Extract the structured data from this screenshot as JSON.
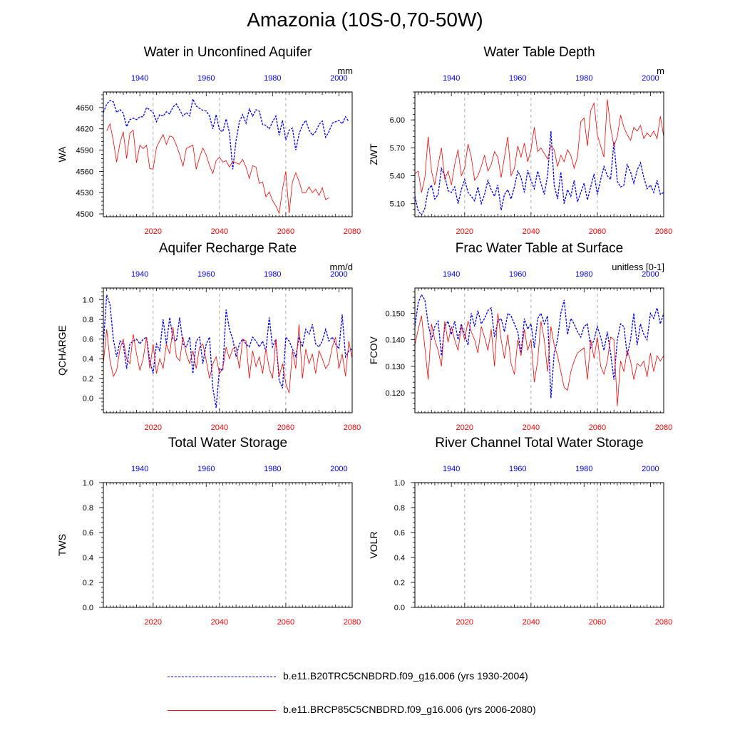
{
  "figure_title": "Amazonia (10S-0,70-50W)",
  "colors": {
    "historical": "#0000ff",
    "future": "#ff0000",
    "grid": "#999999"
  },
  "legend": [
    {
      "label": "b.e11.B20TRC5CNBDRD.f09_g16.006 (yrs 1930-2004)",
      "color": "#0000ff",
      "style": "dashed"
    },
    {
      "label": "b.e11.BRCP85C5CNBDRD.f09_g16.006 (yrs 2006-2080)",
      "color": "#ff0000",
      "style": "solid"
    }
  ],
  "chart_data": [
    {
      "type": "line",
      "title": "Water in Unconfined Aquifer",
      "ylabel": "WA",
      "units": "mm",
      "ylim": [
        4496,
        4672
      ],
      "yticks": [
        4500,
        4530,
        4560,
        4590,
        4620,
        4650
      ],
      "ytick_labels": [
        "4500",
        "4530",
        "4560",
        "4590",
        "4620",
        "4650"
      ],
      "x_bottom": {
        "range": [
          2005,
          2080
        ],
        "ticks": [
          2020,
          2040,
          2060,
          2080
        ]
      },
      "x_top": {
        "range": [
          1929,
          2004
        ],
        "ticks": [
          1940,
          1960,
          1980,
          2000
        ]
      },
      "series": [
        {
          "name": "b.e11.B20TRC5CNBDRD.f09_g16.006",
          "axis": "top",
          "color": "#0000ff",
          "dash": "dashed",
          "x_start": 1929,
          "values": [
            4643,
            4655,
            4660,
            4658,
            4643,
            4647,
            4642,
            4623,
            4633,
            4635,
            4633,
            4637,
            4637,
            4650,
            4647,
            4643,
            4630,
            4640,
            4638,
            4644,
            4641,
            4651,
            4655,
            4647,
            4638,
            4643,
            4638,
            4662,
            4652,
            4649,
            4646,
            4645,
            4638,
            4620,
            4640,
            4618,
            4616,
            4634,
            4615,
            4563,
            4603,
            4630,
            4640,
            4628,
            4648,
            4638,
            4647,
            4645,
            4626,
            4625,
            4620,
            4630,
            4638,
            4611,
            4632,
            4604,
            4618,
            4621,
            4590,
            4613,
            4625,
            4632,
            4618,
            4611,
            4616,
            4626,
            4631,
            4608,
            4616,
            4628,
            4630,
            4632,
            4627,
            4637,
            4630
          ]
        },
        {
          "name": "b.e11.BRCP85C5CNBDRD.f09_g16.006",
          "axis": "bottom",
          "color": "#ff0000",
          "dash": "solid",
          "x_start": 2006,
          "values": [
            4617,
            4627,
            4603,
            4573,
            4600,
            4616,
            4578,
            4614,
            4618,
            4572,
            4597,
            4592,
            4597,
            4564,
            4563,
            4594,
            4603,
            4612,
            4598,
            4610,
            4608,
            4597,
            4584,
            4567,
            4592,
            4595,
            4597,
            4563,
            4580,
            4593,
            4583,
            4568,
            4557,
            4575,
            4580,
            4573,
            4575,
            4566,
            4574,
            4572,
            4570,
            4577,
            4566,
            4550,
            4568,
            4566,
            4543,
            4545,
            4524,
            4531,
            4519,
            4511,
            4501,
            4535,
            4560,
            4501,
            4545,
            4558,
            4546,
            4530,
            4530,
            4538,
            4530,
            4535,
            4526,
            4537,
            4520,
            4523
          ]
        }
      ]
    },
    {
      "type": "line",
      "title": "Water Table Depth",
      "ylabel": "ZWT",
      "units": "m",
      "ylim": [
        4.96,
        6.3
      ],
      "yticks": [
        5.1,
        5.4,
        5.7,
        6.0
      ],
      "ytick_labels": [
        "5.10",
        "5.40",
        "5.70",
        "6.00"
      ],
      "x_bottom": {
        "range": [
          2005,
          2080
        ],
        "ticks": [
          2020,
          2040,
          2060,
          2080
        ]
      },
      "x_top": {
        "range": [
          1929,
          2004
        ],
        "ticks": [
          1940,
          1960,
          1980,
          2000
        ]
      },
      "series": [
        {
          "name": "b.e11.B20TRC5CNBDRD.f09_g16.006",
          "axis": "top",
          "color": "#0000ff",
          "dash": "dashed",
          "x_start": 1929,
          "values": [
            5.18,
            5.02,
            4.98,
            5.05,
            5.25,
            5.3,
            5.15,
            5.2,
            5.48,
            5.4,
            5.24,
            5.22,
            5.28,
            5.1,
            5.25,
            5.36,
            5.22,
            5.18,
            5.13,
            5.28,
            5.1,
            5.2,
            5.35,
            5.25,
            5.18,
            5.3,
            5.03,
            5.2,
            5.25,
            5.15,
            5.28,
            5.45,
            5.38,
            5.22,
            5.46,
            5.35,
            5.26,
            5.45,
            5.32,
            5.2,
            5.4,
            5.88,
            5.3,
            5.15,
            5.44,
            5.1,
            5.25,
            5.18,
            5.35,
            5.12,
            5.22,
            5.32,
            5.14,
            5.28,
            5.42,
            5.2,
            5.36,
            5.5,
            5.4,
            5.36,
            5.76,
            5.34,
            5.28,
            5.3,
            5.52,
            5.44,
            5.32,
            5.46,
            5.54,
            5.38,
            5.26,
            5.3,
            5.22,
            5.35,
            5.2,
            5.22,
            5.15,
            5.32,
            5.1,
            5.3
          ]
        },
        {
          "name": "b.e11.BRCP85C5CNBDRD.f09_g16.006",
          "axis": "bottom",
          "color": "#ff0000",
          "dash": "solid",
          "x_start": 2005,
          "values": [
            5.42,
            5.45,
            5.22,
            5.38,
            5.82,
            5.45,
            5.3,
            5.52,
            5.7,
            5.36,
            5.45,
            5.3,
            5.52,
            5.68,
            5.4,
            5.48,
            5.74,
            5.6,
            5.35,
            5.4,
            5.5,
            5.62,
            5.45,
            5.52,
            5.66,
            5.6,
            5.38,
            5.6,
            5.82,
            5.4,
            5.48,
            5.72,
            5.6,
            5.75,
            5.55,
            5.68,
            5.92,
            5.66,
            5.7,
            5.64,
            5.58,
            5.72,
            5.68,
            5.5,
            5.62,
            5.55,
            5.68,
            5.62,
            5.48,
            5.6,
            5.98,
            6.02,
            5.72,
            6.1,
            6.18,
            5.84,
            5.72,
            5.6,
            6.22,
            5.92,
            5.72,
            5.82,
            6.05,
            5.92,
            5.84,
            5.78,
            5.92,
            5.88,
            5.94,
            5.8,
            5.86,
            5.82,
            5.88,
            5.8,
            6.04,
            5.82
          ]
        }
      ]
    },
    {
      "type": "line",
      "title": "Aquifer Recharge Rate",
      "ylabel": "QCHARGE",
      "units": "mm/d",
      "ylim": [
        -0.15,
        1.12
      ],
      "yticks": [
        0.0,
        0.2,
        0.4,
        0.6,
        0.8,
        1.0
      ],
      "ytick_labels": [
        "0.0",
        "0.2",
        "0.4",
        "0.6",
        "0.8",
        "1.0"
      ],
      "x_bottom": {
        "range": [
          2005,
          2080
        ],
        "ticks": [
          2020,
          2040,
          2060,
          2080
        ]
      },
      "x_top": {
        "range": [
          1929,
          2004
        ],
        "ticks": [
          1940,
          1960,
          1980,
          2000
        ]
      },
      "series": [
        {
          "name": "b.e11.B20TRC5CNBDRD.f09_g16.006",
          "axis": "top",
          "color": "#0000ff",
          "dash": "dashed",
          "x_start": 1929,
          "values": [
            0.55,
            1.05,
            0.95,
            0.6,
            0.42,
            0.58,
            0.55,
            0.3,
            0.55,
            0.58,
            0.6,
            0.55,
            0.6,
            0.62,
            0.38,
            0.25,
            0.55,
            0.48,
            0.8,
            0.55,
            0.82,
            0.6,
            0.58,
            0.82,
            0.55,
            0.52,
            0.62,
            0.25,
            0.58,
            0.62,
            0.35,
            0.55,
            0.62,
            0.1,
            -0.1,
            0.3,
            0.28,
            0.9,
            0.7,
            0.6,
            0.42,
            0.55,
            0.6,
            0.55,
            0.52,
            0.62,
            0.58,
            0.52,
            0.58,
            0.48,
            0.82,
            0.52,
            0.6,
            0.18,
            0.1,
            0.62,
            0.58,
            0.5,
            0.42,
            0.62,
            0.52,
            0.7,
            0.65,
            0.75,
            0.55,
            0.52,
            0.58,
            0.7,
            0.58,
            0.62,
            0.55,
            0.5,
            0.85,
            0.42,
            0.48,
            0.5
          ]
        },
        {
          "name": "b.e11.BRCP85C5CNBDRD.f09_g16.006",
          "axis": "bottom",
          "color": "#ff0000",
          "dash": "solid",
          "x_start": 2005,
          "values": [
            0.35,
            0.7,
            0.38,
            0.22,
            0.28,
            0.5,
            0.6,
            0.4,
            0.35,
            0.65,
            0.45,
            0.28,
            0.4,
            0.62,
            0.3,
            0.55,
            0.25,
            0.4,
            0.3,
            0.55,
            0.45,
            0.72,
            0.42,
            0.38,
            0.62,
            0.45,
            0.35,
            0.48,
            0.3,
            0.52,
            0.55,
            0.38,
            0.2,
            0.35,
            0.42,
            0.25,
            0.3,
            0.52,
            0.4,
            0.5,
            0.52,
            0.3,
            0.6,
            0.58,
            0.2,
            0.48,
            0.32,
            0.42,
            0.25,
            0.5,
            0.3,
            0.2,
            0.6,
            0.22,
            0.35,
            0.15,
            0.05,
            0.48,
            0.3,
            0.75,
            0.2,
            0.5,
            0.35,
            0.45,
            0.25,
            0.48,
            0.4,
            0.3,
            0.35,
            0.52,
            0.62,
            0.3,
            0.45,
            0.22,
            0.58,
            0.4
          ]
        }
      ]
    },
    {
      "type": "line",
      "title": "Frac Water Table at Surface",
      "ylabel": "FCOV",
      "units": "unitless [0-1]",
      "ylim": [
        0.1125,
        0.1595
      ],
      "yticks": [
        0.12,
        0.13,
        0.14,
        0.15
      ],
      "ytick_labels": [
        "0.120",
        "0.130",
        "0.140",
        "0.150"
      ],
      "x_bottom": {
        "range": [
          2005,
          2080
        ],
        "ticks": [
          2020,
          2040,
          2060,
          2080
        ]
      },
      "x_top": {
        "range": [
          1929,
          2004
        ],
        "ticks": [
          1940,
          1960,
          1980,
          2000
        ]
      },
      "series": [
        {
          "name": "b.e11.B20TRC5CNBDRD.f09_g16.006",
          "axis": "top",
          "color": "#0000ff",
          "dash": "dashed",
          "x_start": 1929,
          "values": [
            0.145,
            0.154,
            0.157,
            0.155,
            0.146,
            0.14,
            0.145,
            0.147,
            0.134,
            0.145,
            0.147,
            0.142,
            0.147,
            0.14,
            0.146,
            0.142,
            0.138,
            0.15,
            0.145,
            0.151,
            0.146,
            0.148,
            0.151,
            0.152,
            0.141,
            0.147,
            0.148,
            0.143,
            0.15,
            0.149,
            0.146,
            0.143,
            0.135,
            0.148,
            0.144,
            0.146,
            0.137,
            0.148,
            0.15,
            0.146,
            0.149,
            0.118,
            0.135,
            0.14,
            0.15,
            0.155,
            0.142,
            0.148,
            0.146,
            0.143,
            0.141,
            0.145,
            0.146,
            0.137,
            0.14,
            0.145,
            0.141,
            0.136,
            0.143,
            0.135,
            0.125,
            0.14,
            0.146,
            0.145,
            0.134,
            0.14,
            0.15,
            0.138,
            0.146,
            0.142,
            0.14,
            0.15,
            0.148,
            0.152,
            0.146,
            0.15,
            0.152,
            0.148,
            0.153,
            0.143
          ]
        },
        {
          "name": "b.e11.BRCP85C5CNBDRD.f09_g16.006",
          "axis": "bottom",
          "color": "#ff0000",
          "dash": "solid",
          "x_start": 2005,
          "values": [
            0.138,
            0.144,
            0.149,
            0.137,
            0.125,
            0.146,
            0.14,
            0.136,
            0.13,
            0.147,
            0.139,
            0.145,
            0.14,
            0.136,
            0.145,
            0.14,
            0.147,
            0.143,
            0.14,
            0.135,
            0.145,
            0.141,
            0.136,
            0.144,
            0.13,
            0.15,
            0.14,
            0.133,
            0.142,
            0.131,
            0.127,
            0.14,
            0.134,
            0.144,
            0.136,
            0.14,
            0.124,
            0.132,
            0.147,
            0.14,
            0.128,
            0.145,
            0.138,
            0.134,
            0.128,
            0.122,
            0.121,
            0.128,
            0.132,
            0.135,
            0.136,
            0.137,
            0.125,
            0.14,
            0.133,
            0.141,
            0.13,
            0.127,
            0.132,
            0.141,
            0.14,
            0.115,
            0.132,
            0.128,
            0.136,
            0.132,
            0.125,
            0.131,
            0.13,
            0.132,
            0.126,
            0.135,
            0.128,
            0.134,
            0.132,
            0.134
          ]
        }
      ]
    },
    {
      "type": "line",
      "title": "Total Water Storage",
      "ylabel": "TWS",
      "units": "",
      "ylim": [
        0,
        1
      ],
      "yticks": [
        0.0,
        0.2,
        0.4,
        0.6,
        0.8,
        1.0
      ],
      "ytick_labels": [
        "0.0",
        "0.2",
        "0.4",
        "0.6",
        "0.8",
        "1.0"
      ],
      "x_bottom": {
        "range": [
          2005,
          2080
        ],
        "ticks": [
          2020,
          2040,
          2060,
          2080
        ]
      },
      "x_top": {
        "range": [
          1929,
          2004
        ],
        "ticks": [
          1940,
          1960,
          1980,
          2000
        ]
      },
      "series": []
    },
    {
      "type": "line",
      "title": "River Channel Total Water Storage",
      "ylabel": "VOLR",
      "units": "",
      "ylim": [
        0,
        1
      ],
      "yticks": [
        0.0,
        0.2,
        0.4,
        0.6,
        0.8,
        1.0
      ],
      "ytick_labels": [
        "0.0",
        "0.2",
        "0.4",
        "0.6",
        "0.8",
        "1.0"
      ],
      "x_bottom": {
        "range": [
          2005,
          2080
        ],
        "ticks": [
          2020,
          2040,
          2060,
          2080
        ]
      },
      "x_top": {
        "range": [
          1929,
          2004
        ],
        "ticks": [
          1940,
          1960,
          1980,
          2000
        ]
      },
      "series": []
    }
  ]
}
